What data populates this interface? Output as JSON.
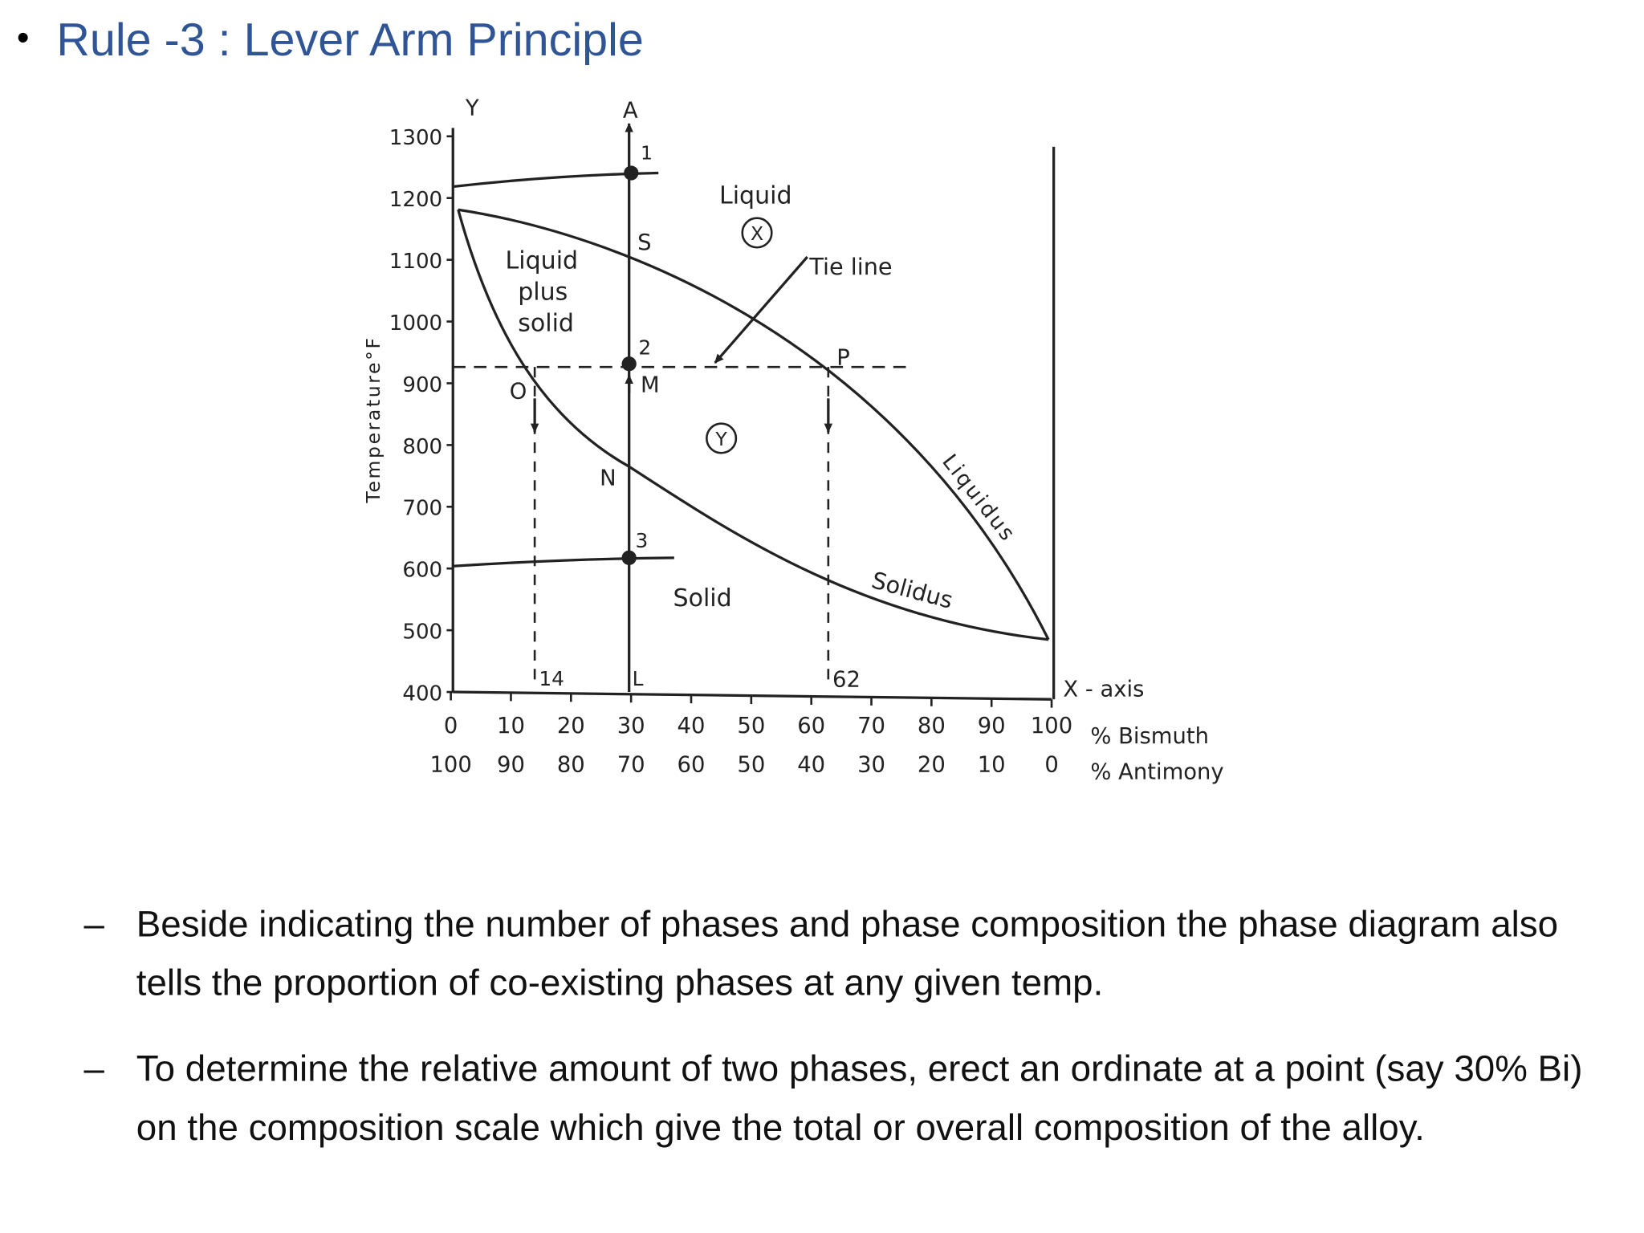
{
  "title": "Rule -3 : Lever Arm Principle",
  "figure": {
    "y_letter": "Y",
    "a_letter": "A",
    "y_axis_label": "Temperature°F",
    "y_ticks": [
      1300,
      1200,
      1100,
      1000,
      900,
      800,
      700,
      600,
      500,
      400
    ],
    "bismuth_ticks": [
      0,
      10,
      20,
      30,
      40,
      50,
      60,
      70,
      80,
      90,
      100
    ],
    "antimony_ticks": [
      100,
      90,
      80,
      70,
      60,
      50,
      40,
      30,
      20,
      10,
      0
    ],
    "bismuth_unit": "% Bismuth",
    "antimony_unit": "% Antimony",
    "x_axis_label": "X - axis",
    "liquid": "Liquid",
    "liquid_plus_solid": [
      "Liquid",
      "plus",
      "solid"
    ],
    "solid": "Solid",
    "circle_x": "X",
    "circle_y": "Y",
    "tie_line": "Tie line",
    "liquidus": "Liquidus",
    "solidus": "Solidus",
    "point_1": "1",
    "point_s": "S",
    "point_2": "2",
    "point_m": "M",
    "point_o": "O",
    "point_n": "N",
    "point_3": "3",
    "point_l": "L",
    "point_p": "P",
    "mark_14": "14",
    "mark_62": "62"
  },
  "bullets": [
    "Beside indicating the number of phases and phase composition the phase diagram also tells the proportion of co-existing phases at any given temp.",
    "To determine the relative amount of two phases, erect an ordinate at a point (say 30% Bi) on the composition scale which give the total or overall composition of the alloy."
  ]
}
